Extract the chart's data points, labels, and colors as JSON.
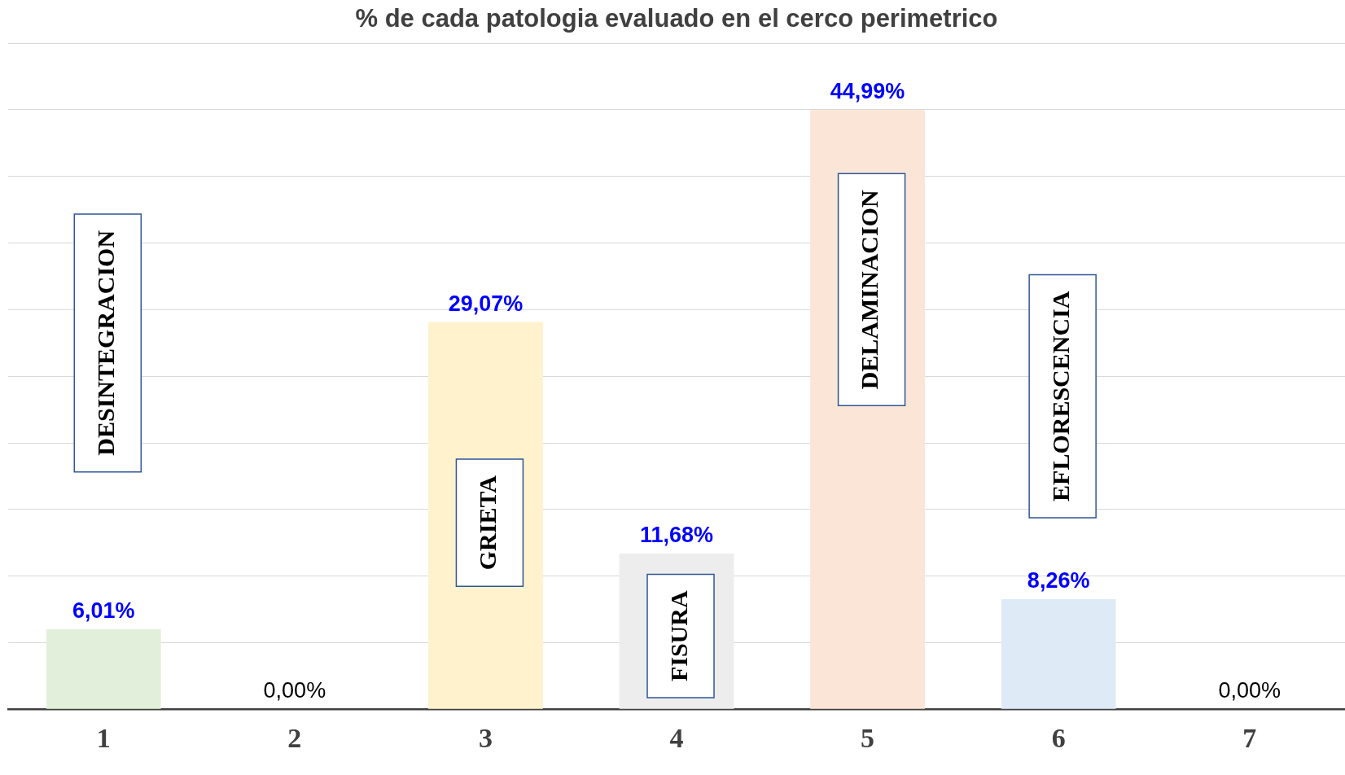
{
  "chart_data": {
    "type": "bar",
    "title": "% de cada patologia evaluado en el cerco perimetrico",
    "categories": [
      "1",
      "2",
      "3",
      "4",
      "5",
      "6",
      "7"
    ],
    "values": [
      6.01,
      0,
      29.07,
      11.68,
      44.99,
      8.26,
      0
    ],
    "colors": [
      "#e2efda",
      "#dae3f3",
      "#fff2cc",
      "#ededed",
      "#fbe5d6",
      "#deebf7",
      "#e2efda"
    ],
    "value_labels": [
      "6,01%",
      "0,00%",
      "29,07%",
      "11,68%",
      "44,99%",
      "8,26%",
      "0,00%"
    ],
    "ylim": [
      0,
      50
    ],
    "yticks": [
      {
        "value": 0,
        "label": null
      },
      {
        "value": 5,
        "label": null
      },
      {
        "value": 10,
        "label": null
      },
      {
        "value": 15,
        "label": null
      },
      {
        "value": 20,
        "label": null
      },
      {
        "value": 25,
        "label": null
      },
      {
        "value": 30,
        "label": null
      },
      {
        "value": 35,
        "label": null
      },
      {
        "value": 40,
        "label": null
      },
      {
        "value": 45,
        "label": null
      },
      {
        "value": 50,
        "label": null
      }
    ],
    "tick_labels": "x",
    "grid": "y",
    "legend": false,
    "annotations": [
      "DESINTEGRACION",
      "GRIETA",
      "FISURA",
      "DELAMINACION",
      "EFLORESCENCIA"
    ]
  }
}
